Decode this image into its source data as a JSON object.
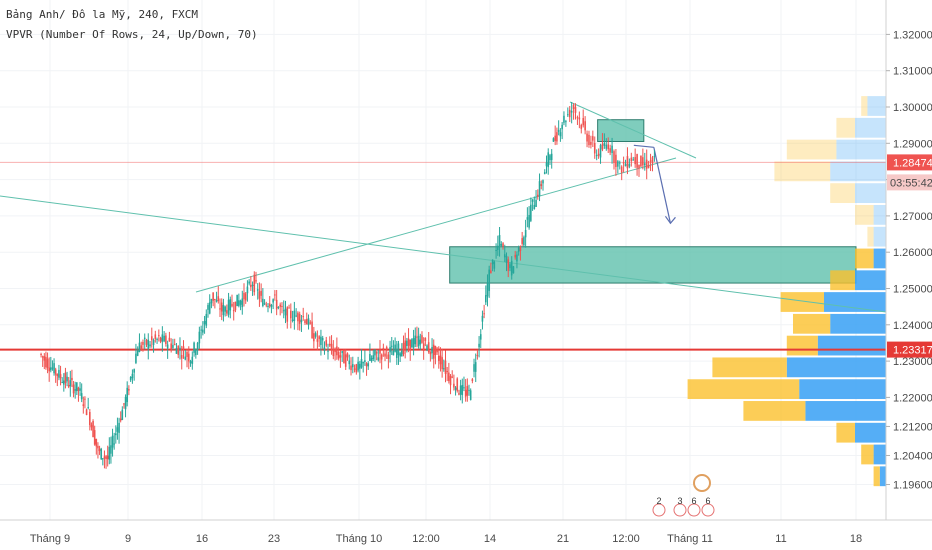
{
  "legend": {
    "symbol_line": "Bảng Anh/ Đô la Mỹ, 240, FXCM",
    "indicator_line": "VPVR (Number Of Rows, 24, Up/Down, 70)"
  },
  "colors": {
    "up": "#26a69a",
    "down": "#ef5350",
    "zone_fill": "#5fc0ad",
    "trendline": "#5fc0ad",
    "support": "#e53935",
    "arrow": "#5b6fb1",
    "vp_up": "#42a5f5",
    "vp_down": "#fbc02d"
  },
  "price_tags": {
    "current": "1.28474",
    "countdown": "03:55:42",
    "support": "1.23317"
  },
  "events": [
    "2",
    "3",
    "6",
    "6"
  ],
  "chart_data": {
    "type": "candlestick",
    "ylim": [
      1.192,
      1.326
    ],
    "y_ticks": [
      "1.32000",
      "1.31000",
      "1.30000",
      "1.29000",
      "1.28000",
      "1.27000",
      "1.26000",
      "1.25000",
      "1.24000",
      "1.23000",
      "1.22000",
      "1.21200",
      "1.20400",
      "1.19600"
    ],
    "x_ticks": [
      "Tháng 9",
      "9",
      "16",
      "23",
      "Tháng 10",
      "12:00",
      "14",
      "21",
      "12:00",
      "Tháng 11",
      "11",
      "18"
    ],
    "support_level": 1.23317,
    "current_price": 1.28474,
    "zones": [
      {
        "name": "upper-supply-zone",
        "from": "Oct 24",
        "to": "Oct 28",
        "low": 1.2905,
        "high": 1.2965
      },
      {
        "name": "demand-zone",
        "from": "Oct 10",
        "to": "Nov 18",
        "low": 1.2515,
        "high": 1.2615
      }
    ],
    "price_path": [
      [
        "Aug 31",
        1.232
      ],
      [
        "Sep 2",
        1.226
      ],
      [
        "Sep 4",
        1.222
      ],
      [
        "Sep 5",
        1.216
      ],
      [
        "Sep 6",
        1.205
      ],
      [
        "Sep 7",
        1.203
      ],
      [
        "Sep 9",
        1.221
      ],
      [
        "Sep 10",
        1.234
      ],
      [
        "Sep 12",
        1.236
      ],
      [
        "Sep 13",
        1.235
      ],
      [
        "Sep 15",
        1.231
      ],
      [
        "Sep 16",
        1.238
      ],
      [
        "Sep 17",
        1.248
      ],
      [
        "Sep 18",
        1.244
      ],
      [
        "Sep 20",
        1.247
      ],
      [
        "Sep 21",
        1.252
      ],
      [
        "Sep 22",
        1.246
      ],
      [
        "Sep 23",
        1.247
      ],
      [
        "Sep 24",
        1.243
      ],
      [
        "Sep 26",
        1.242
      ],
      [
        "Sep 27",
        1.236
      ],
      [
        "Sep 29",
        1.232
      ],
      [
        "Oct 1",
        1.228
      ],
      [
        "Oct 3",
        1.232
      ],
      [
        "Oct 5",
        1.233
      ],
      [
        "Oct 7",
        1.236
      ],
      [
        "Oct 9",
        1.231
      ],
      [
        "Oct 10",
        1.226
      ],
      [
        "Oct 11",
        1.222
      ],
      [
        "Oct 12",
        1.221
      ],
      [
        "Oct 13",
        1.236
      ],
      [
        "Oct 14",
        1.254
      ],
      [
        "Oct 15",
        1.263
      ],
      [
        "Oct 16",
        1.255
      ],
      [
        "Oct 17",
        1.262
      ],
      [
        "Oct 18",
        1.272
      ],
      [
        "Oct 19",
        1.279
      ],
      [
        "Oct 20",
        1.289
      ],
      [
        "Oct 21",
        1.296
      ],
      [
        "Oct 22",
        1.3
      ],
      [
        "Oct 23",
        1.293
      ],
      [
        "Oct 24",
        1.287
      ],
      [
        "Oct 25",
        1.29
      ],
      [
        "Oct 26",
        1.283
      ],
      [
        "Oct 27",
        1.286
      ],
      [
        "Oct 28",
        1.284
      ],
      [
        "Oct 29",
        1.285
      ]
    ],
    "projection": [
      [
        "Oct 28",
        1.29
      ],
      [
        "Oct 31",
        1.263
      ]
    ],
    "volume_profile": {
      "bins": [
        1.3,
        1.294,
        1.288,
        1.282,
        1.276,
        1.27,
        1.264,
        1.258,
        1.252,
        1.246,
        1.24,
        1.234,
        1.228,
        1.222,
        1.216,
        1.21,
        1.204,
        1.198
      ],
      "up": [
        3,
        5,
        8,
        9,
        5,
        2,
        2,
        2,
        5,
        10,
        9,
        11,
        16,
        14,
        13,
        5,
        2,
        1
      ],
      "down": [
        1,
        3,
        8,
        9,
        4,
        3,
        1,
        3,
        4,
        7,
        6,
        5,
        12,
        18,
        10,
        3,
        2,
        1
      ]
    }
  }
}
